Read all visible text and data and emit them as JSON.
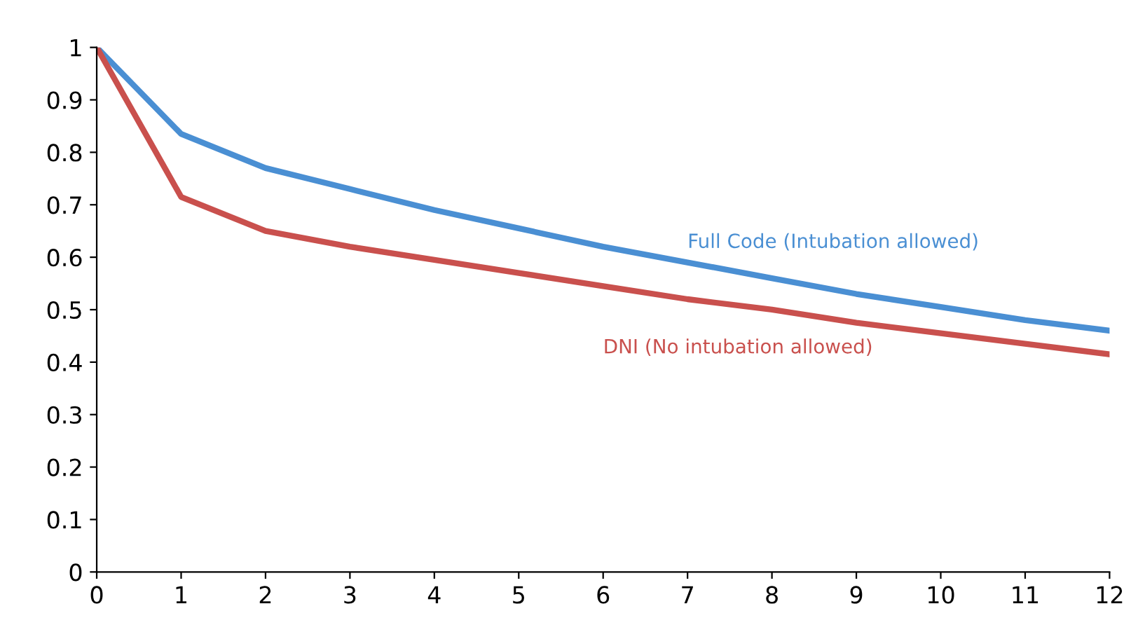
{
  "chart_data": {
    "type": "line",
    "x": [
      0,
      1,
      2,
      3,
      4,
      5,
      6,
      7,
      8,
      9,
      10,
      11,
      12
    ],
    "series": [
      {
        "name": "Full Code (Intubation allowed)",
        "color": "#4a8fd3",
        "values": [
          1,
          0.835,
          0.77,
          0.73,
          0.69,
          0.655,
          0.62,
          0.59,
          0.56,
          0.53,
          0.505,
          0.48,
          0.46
        ]
      },
      {
        "name": "DNI (No intubation allowed)",
        "color": "#c9504d",
        "values": [
          1,
          0.715,
          0.65,
          0.62,
          0.595,
          0.57,
          0.545,
          0.52,
          0.5,
          0.475,
          0.455,
          0.435,
          0.415
        ]
      }
    ],
    "xlim": [
      0,
      12
    ],
    "xticks": [
      0,
      1,
      2,
      3,
      4,
      5,
      6,
      7,
      8,
      9,
      10,
      11,
      12
    ],
    "ylim": [
      0,
      1
    ],
    "yticks": [
      0,
      0.1,
      0.2,
      0.3,
      0.4,
      0.5,
      0.6,
      0.7,
      0.8,
      0.9,
      1
    ],
    "grid": false,
    "legend": false,
    "marker": "none",
    "line_style": "solid"
  }
}
